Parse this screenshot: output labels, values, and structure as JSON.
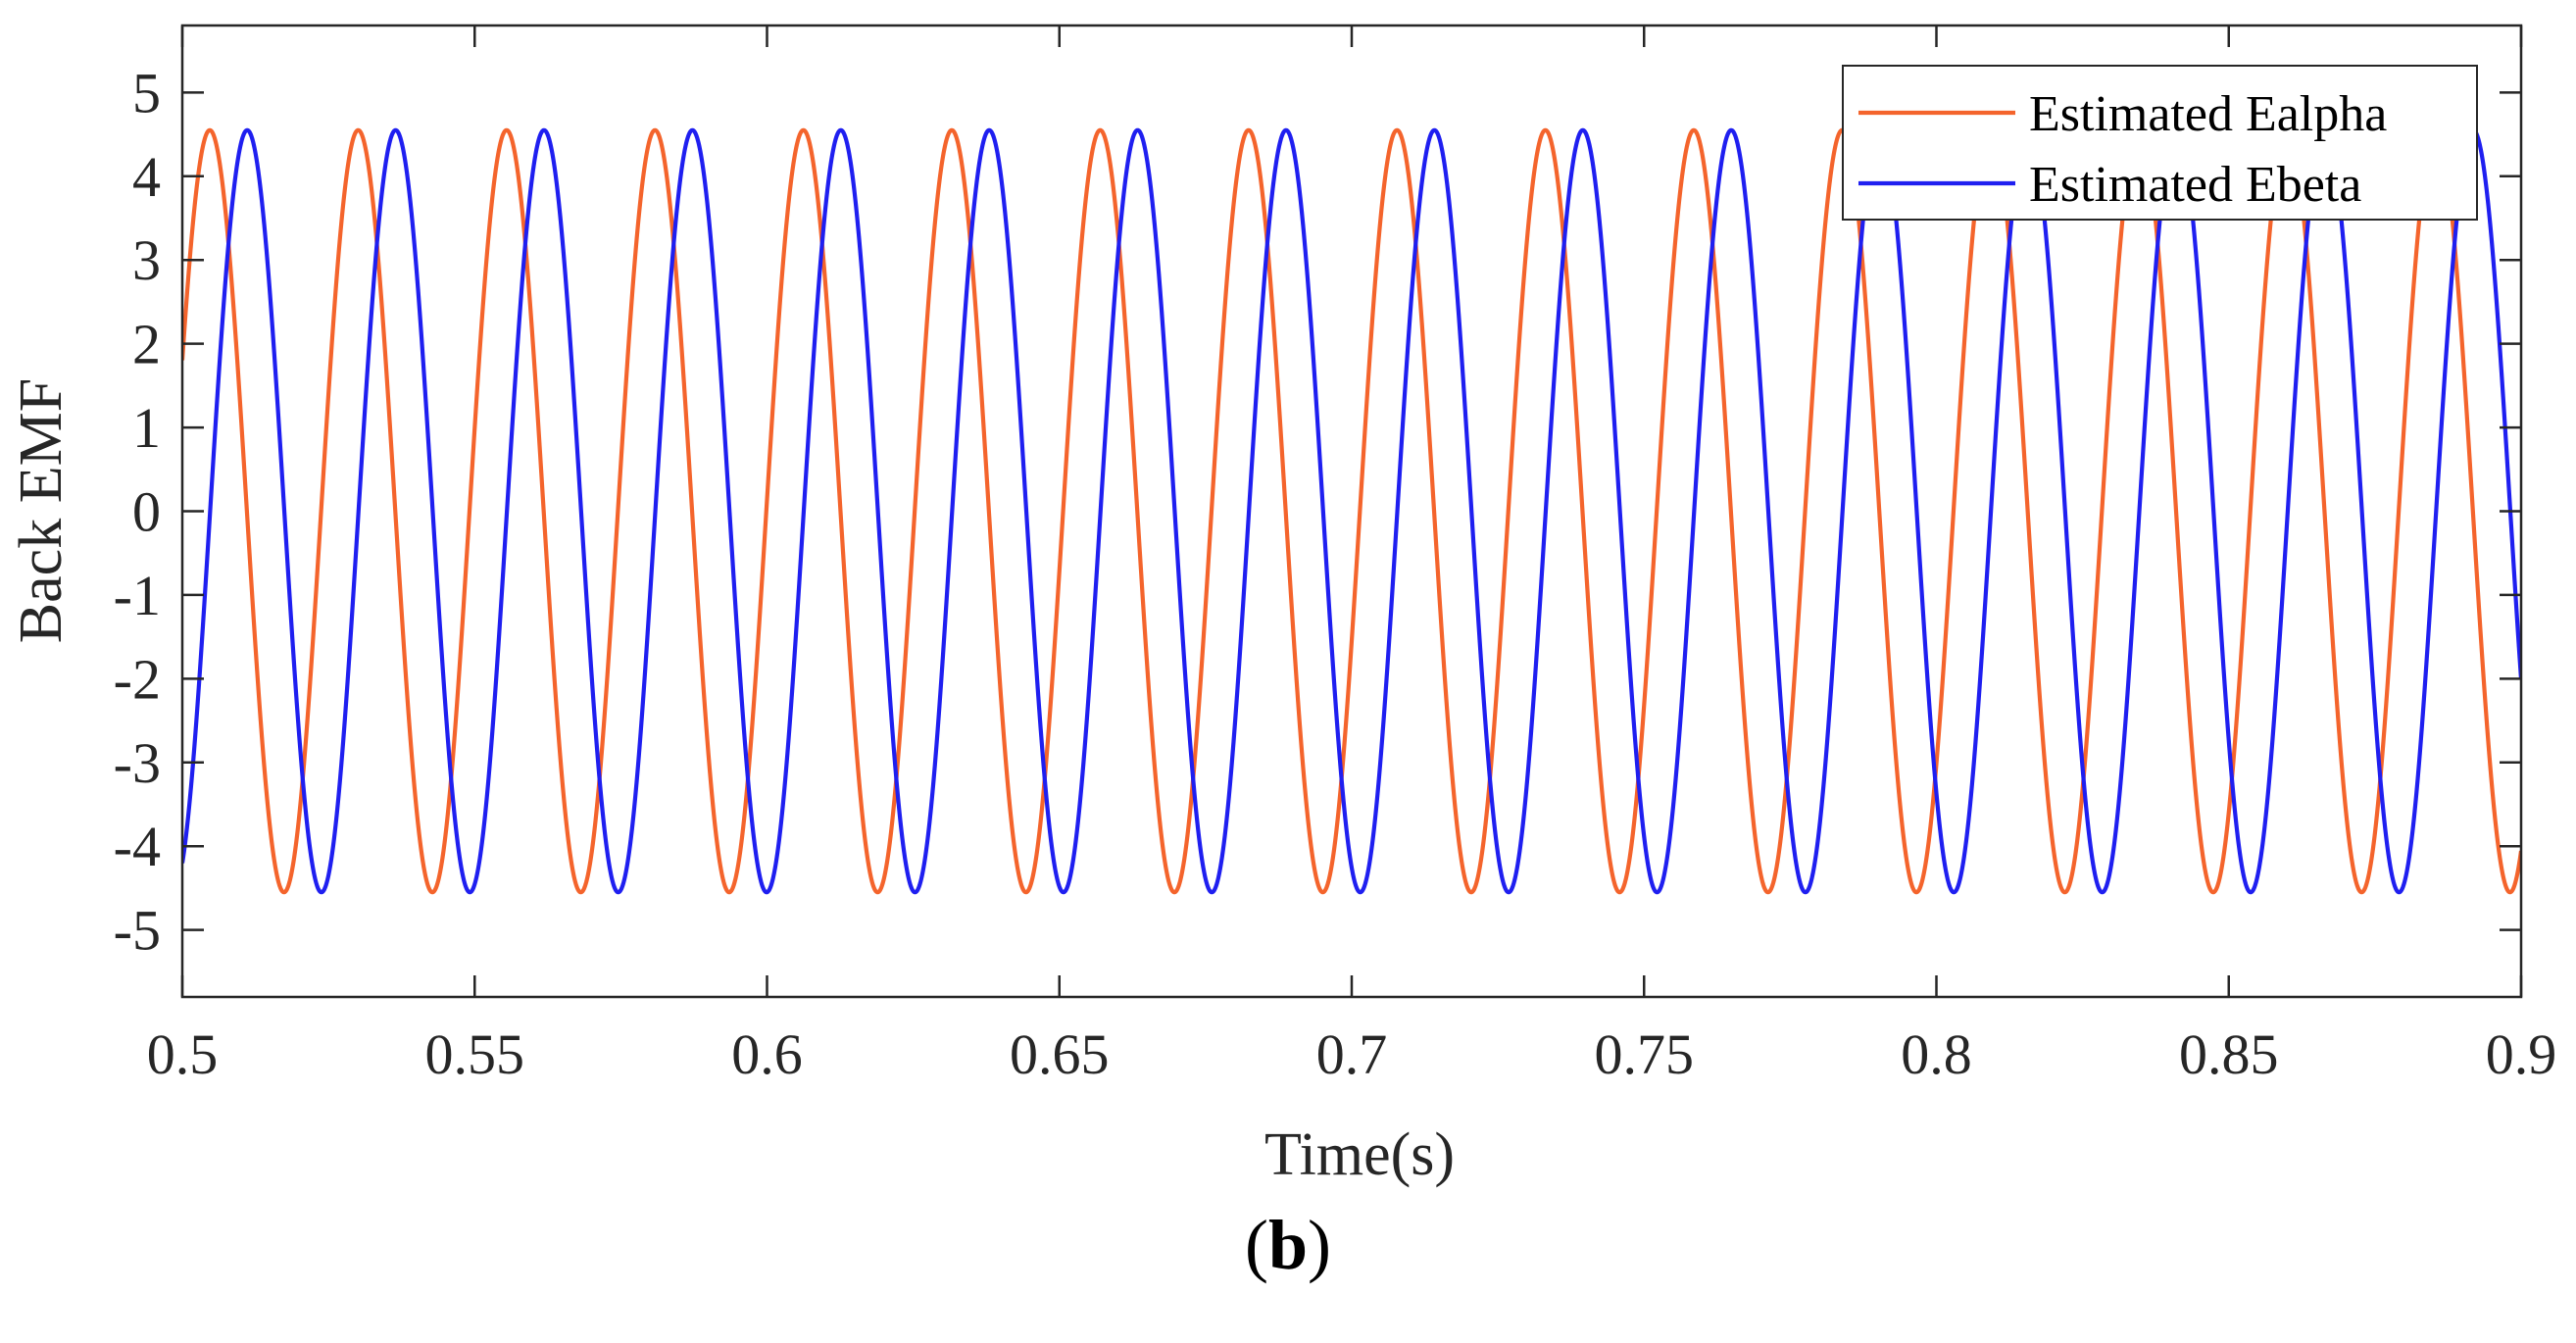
{
  "chart_data": {
    "type": "line",
    "title": "",
    "xlabel": "Time(s)",
    "ylabel": "Back EMF",
    "xlim": [
      0.5,
      0.9
    ],
    "ylim": [
      -5.8,
      5.8
    ],
    "x_ticks": [
      0.5,
      0.55,
      0.6,
      0.65,
      0.7,
      0.75,
      0.8,
      0.85,
      0.9
    ],
    "x_tick_labels": [
      "0.5",
      "0.55",
      "0.6",
      "0.65",
      "0.7",
      "0.75",
      "0.8",
      "0.85",
      "0.9"
    ],
    "y_ticks": [
      5,
      4,
      3,
      2,
      1,
      0,
      -1,
      -2,
      -3,
      -4,
      -5
    ],
    "y_tick_labels": [
      "5",
      "4",
      "3",
      "2",
      "1",
      "0",
      "-1",
      "-2",
      "-3",
      "-4",
      "-5"
    ],
    "grid": false,
    "legend_position": "top-right",
    "series": [
      {
        "name": "Estimated Ealpha",
        "color": "#F4642C",
        "waveform": "sinusoid",
        "amplitude": 4.55,
        "frequency_hz": 39.4,
        "peak_times": [
          0.5047,
          0.5301,
          0.5555,
          0.5809,
          0.6063,
          0.6317,
          0.6571,
          0.6825,
          0.7079,
          0.7333,
          0.7587,
          0.7841,
          0.8095,
          0.8349,
          0.8603,
          0.8857
        ]
      },
      {
        "name": "Estimated Ebeta",
        "color": "#1F1FF0",
        "waveform": "sinusoid",
        "amplitude": 4.55,
        "frequency_hz": 39.4,
        "peak_times": [
          0.5111,
          0.5365,
          0.5619,
          0.5873,
          0.6127,
          0.6381,
          0.6635,
          0.6889,
          0.7143,
          0.7397,
          0.7651,
          0.7905,
          0.8159,
          0.8413,
          0.8667,
          0.8921
        ]
      }
    ]
  },
  "panel_label": {
    "open": "(",
    "letter": "b",
    "close": ")"
  }
}
